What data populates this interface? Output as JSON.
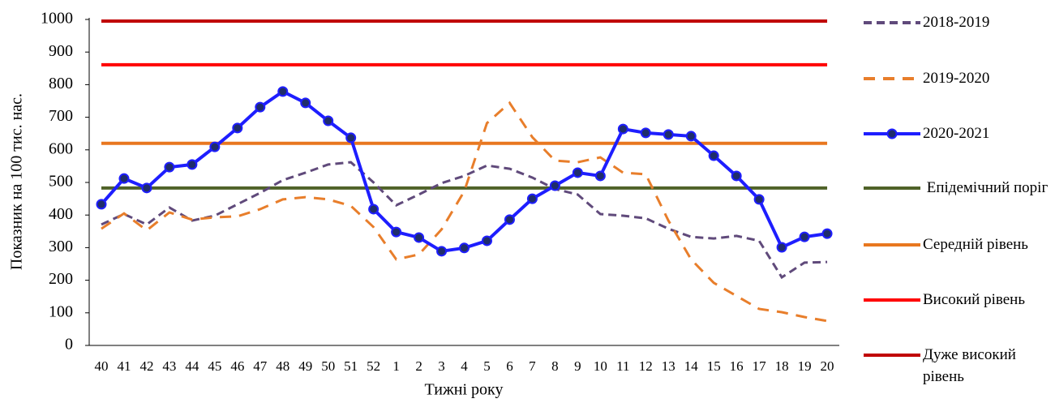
{
  "chart_data": {
    "type": "line",
    "x_label": "Тижні року",
    "y_label": "Показник на 100 тис. нас.",
    "categories": [
      "40",
      "41",
      "42",
      "43",
      "44",
      "45",
      "46",
      "47",
      "48",
      "49",
      "50",
      "51",
      "52",
      "1",
      "2",
      "3",
      "4",
      "5",
      "6",
      "7",
      "8",
      "9",
      "10",
      "11",
      "12",
      "13",
      "14",
      "15",
      "16",
      "17",
      "18",
      "19",
      "20"
    ],
    "ylim": [
      0,
      1000
    ],
    "yticks": [
      0,
      100,
      200,
      300,
      400,
      500,
      600,
      700,
      800,
      900,
      1000
    ],
    "grid": false,
    "legend": "right",
    "series": [
      {
        "name": "2018-2019",
        "color": "#604a7b",
        "line_style": "dashed",
        "values": [
          371,
          403,
          371,
          423,
          383,
          398,
          433,
          468,
          507,
          530,
          555,
          562,
          500,
          430,
          463,
          498,
          520,
          552,
          542,
          515,
          480,
          463,
          403,
          398,
          390,
          358,
          333,
          328,
          336,
          321,
          209,
          254,
          256
        ]
      },
      {
        "name": "2019-2020",
        "color": "#e87e2b",
        "line_style": "dashed",
        "values": [
          358,
          405,
          353,
          408,
          386,
          393,
          396,
          418,
          448,
          455,
          448,
          428,
          363,
          264,
          279,
          356,
          473,
          682,
          744,
          639,
          567,
          562,
          577,
          530,
          525,
          383,
          264,
          192,
          152,
          112,
          102,
          87,
          75
        ]
      },
      {
        "name": "2020-2021",
        "color": "#1e1eff",
        "line_style": "solid",
        "marker": "circle",
        "values": [
          433,
          512,
          483,
          547,
          555,
          609,
          667,
          731,
          779,
          744,
          689,
          637,
          418,
          348,
          331,
          289,
          299,
          321,
          386,
          450,
          490,
          530,
          520,
          664,
          652,
          647,
          642,
          582,
          520,
          448,
          301,
          333,
          343
        ]
      },
      {
        "name": " Епідемічний поріг",
        "color": "#4f6228",
        "line_style": "solid",
        "values": [
          483,
          483,
          483,
          483,
          483,
          483,
          483,
          483,
          483,
          483,
          483,
          483,
          483,
          483,
          483,
          483,
          483,
          483,
          483,
          483,
          483,
          483,
          483,
          483,
          483,
          483,
          483,
          483,
          483,
          483,
          483,
          483,
          483
        ]
      },
      {
        "name": "Середній рівень",
        "color": "#e8771f",
        "line_style": "solid",
        "values": [
          620,
          620,
          620,
          620,
          620,
          620,
          620,
          620,
          620,
          620,
          620,
          620,
          620,
          620,
          620,
          620,
          620,
          620,
          620,
          620,
          620,
          620,
          620,
          620,
          620,
          620,
          620,
          620,
          620,
          620,
          620,
          620,
          620
        ]
      },
      {
        "name": "Високий рівень",
        "color": "#ff0000",
        "line_style": "solid",
        "values": [
          861,
          861,
          861,
          861,
          861,
          861,
          861,
          861,
          861,
          861,
          861,
          861,
          861,
          861,
          861,
          861,
          861,
          861,
          861,
          861,
          861,
          861,
          861,
          861,
          861,
          861,
          861,
          861,
          861,
          861,
          861,
          861,
          861
        ]
      },
      {
        "name": "Дуже високий рівень",
        "color": "#c00000",
        "line_style": "solid",
        "values": [
          995,
          995,
          995,
          995,
          995,
          995,
          995,
          995,
          995,
          995,
          995,
          995,
          995,
          995,
          995,
          995,
          995,
          995,
          995,
          995,
          995,
          995,
          995,
          995,
          995,
          995,
          995,
          995,
          995,
          995,
          995,
          995,
          995
        ]
      }
    ]
  }
}
